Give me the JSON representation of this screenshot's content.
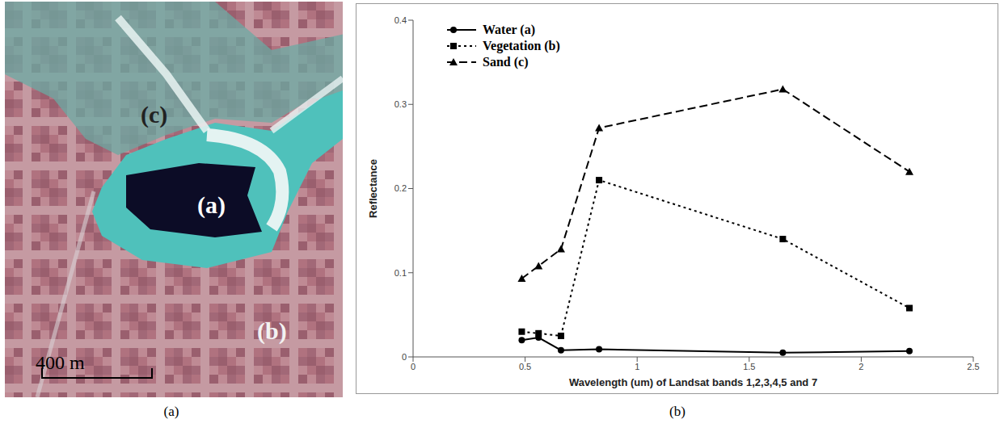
{
  "chart_data": {
    "type": "line",
    "xlabel": "Wavelength (um) of Landsat bands 1,2,3,4,5 and 7",
    "ylabel": "Reflectance",
    "x": [
      0.485,
      0.56,
      0.66,
      0.83,
      1.65,
      2.215
    ],
    "series": [
      {
        "name": "Water (a)",
        "color": "#000000",
        "marker": "circle",
        "line_style": "solid",
        "values": [
          0.02,
          0.023,
          0.008,
          0.009,
          0.005,
          0.007
        ]
      },
      {
        "name": "Vegetation (b)",
        "color": "#000000",
        "marker": "square",
        "line_style": "dotted",
        "values": [
          0.03,
          0.028,
          0.025,
          0.21,
          0.14,
          0.058
        ]
      },
      {
        "name": "Sand (c)",
        "color": "#000000",
        "marker": "triangle",
        "line_style": "dashed",
        "values": [
          0.093,
          0.108,
          0.128,
          0.272,
          0.318,
          0.22
        ]
      }
    ],
    "xlim": [
      0,
      2.5
    ],
    "xticks": [
      0,
      0.5,
      1,
      1.5,
      2,
      2.5
    ],
    "ylim": [
      0,
      0.4
    ],
    "yticks": [
      0,
      0.1,
      0.2,
      0.3,
      0.4
    ],
    "grid": false,
    "legend": "upper left"
  },
  "image_labels": [
    "(c)",
    "(a)",
    "(b)"
  ],
  "scale_bar": "400 m",
  "panel_captions": [
    "(a)",
    "(b)"
  ]
}
